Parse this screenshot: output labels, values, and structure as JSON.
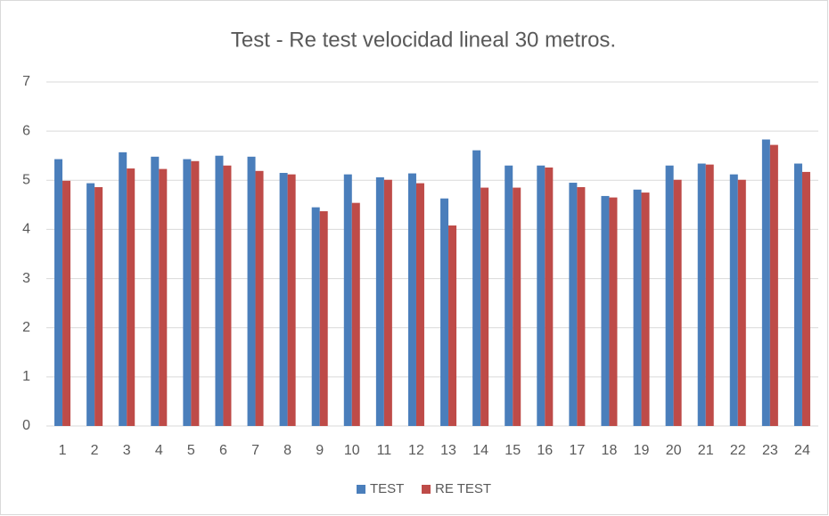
{
  "chart_data": {
    "type": "bar",
    "title": "Test - Re test velocidad lineal 30 metros.",
    "categories": [
      "1",
      "2",
      "3",
      "4",
      "5",
      "6",
      "7",
      "8",
      "9",
      "10",
      "11",
      "12",
      "13",
      "14",
      "15",
      "16",
      "17",
      "18",
      "19",
      "20",
      "21",
      "22",
      "23",
      "24"
    ],
    "series": [
      {
        "name": "TEST",
        "color": "#4a7ebb",
        "values": [
          5.43,
          4.94,
          5.57,
          5.48,
          5.43,
          5.5,
          5.48,
          5.15,
          4.45,
          5.12,
          5.06,
          5.14,
          4.63,
          5.61,
          5.3,
          5.3,
          4.95,
          4.68,
          4.81,
          5.3,
          5.34,
          5.12,
          5.83,
          5.34
        ]
      },
      {
        "name": "RE TEST",
        "color": "#be4b48",
        "values": [
          4.99,
          4.86,
          5.24,
          5.23,
          5.39,
          5.3,
          5.19,
          5.12,
          4.37,
          4.54,
          5.01,
          4.94,
          4.08,
          4.85,
          4.85,
          5.26,
          4.86,
          4.65,
          4.75,
          5.01,
          5.32,
          5.01,
          5.72,
          5.17
        ]
      }
    ],
    "ylim": [
      0,
      7
    ],
    "yticks": [
      0,
      1,
      2,
      3,
      4,
      5,
      6,
      7
    ],
    "grid": true,
    "legend": "bottom"
  }
}
